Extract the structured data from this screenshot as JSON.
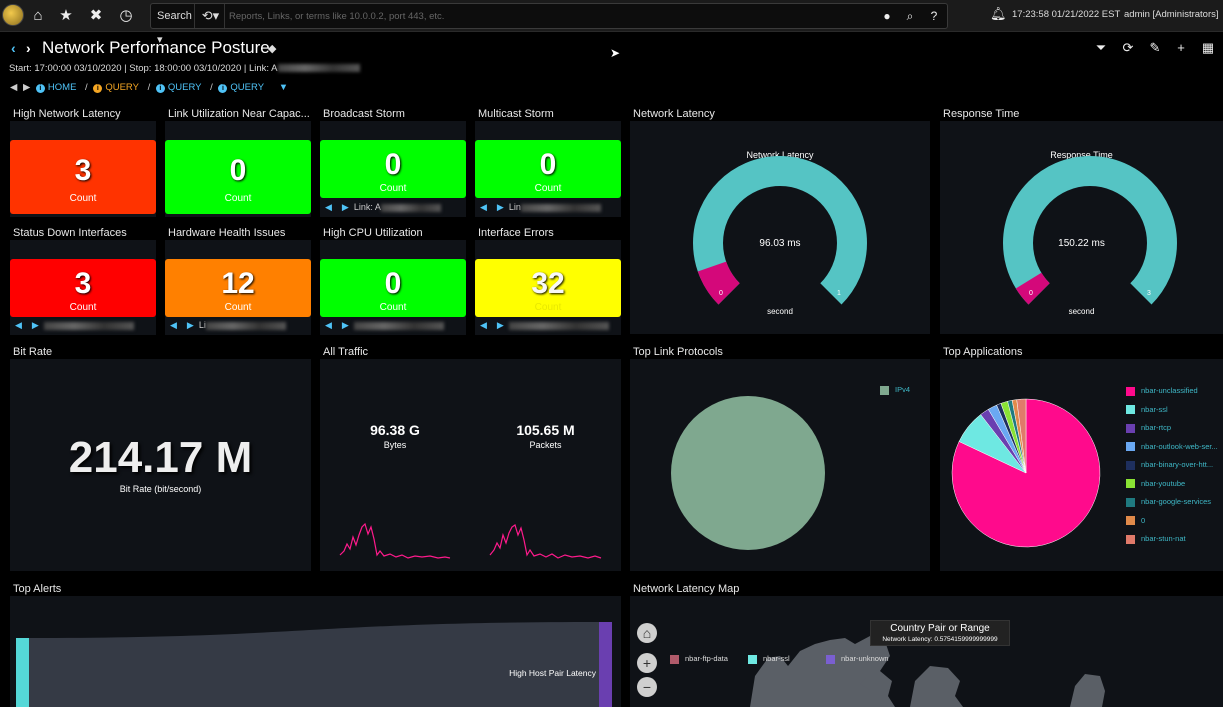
{
  "topbar": {
    "search_label": "Search ▾",
    "history_label": "⟲▾",
    "search_placeholder": "Reports, Links, or terms like 10.0.0.2, port 443, etc.",
    "clock": "17:23:58 01/21/2022 EST",
    "user": "admin [Administrators]"
  },
  "header": {
    "title": "Network Performance Posture",
    "subtitle_prefix": "Start: 17:00:00 03/10/2020 | Stop: 18:00:00 03/10/2020 | Link: A",
    "breadcrumbs": [
      "HOME",
      "QUERY",
      "QUERY",
      "QUERY"
    ]
  },
  "tiles": [
    {
      "title": "High Network Latency",
      "value": "3",
      "label": "Count",
      "color": "#ff3300"
    },
    {
      "title": "Link Utilization Near Capac...",
      "value": "0",
      "label": "Count",
      "color": "#00ff00"
    },
    {
      "title": "Broadcast Storm",
      "value": "0",
      "label": "Count",
      "color": "#00ff00",
      "pager": "Link: A"
    },
    {
      "title": "Multicast Storm",
      "value": "0",
      "label": "Count",
      "color": "#00ff00",
      "pager": "Lin"
    },
    {
      "title": "Status Down Interfaces",
      "value": "3",
      "label": "Count",
      "color": "#ff0000",
      "pager": ""
    },
    {
      "title": "Hardware Health Issues",
      "value": "12",
      "label": "Count",
      "color": "#ff8000",
      "pager": "Li"
    },
    {
      "title": "High CPU Utilization",
      "value": "0",
      "label": "Count",
      "color": "#00ff00",
      "pager": ""
    },
    {
      "title": "Interface Errors",
      "value": "32",
      "label": "Count",
      "color": "#ffff00",
      "pager": ""
    }
  ],
  "gauges": [
    {
      "panel": "Network Latency",
      "title": "Network Latency",
      "value": "96.03 ms",
      "min": "0",
      "max": "1",
      "unit": "second",
      "fraction": 0.096
    },
    {
      "panel": "Response Time",
      "title": "Response Time",
      "value": "150.22 ms",
      "min": "0",
      "max": "3",
      "unit": "second",
      "fraction": 0.05
    }
  ],
  "bitrate": {
    "panel": "Bit Rate",
    "value": "214.17 M",
    "label": "Bit Rate (bit/second)"
  },
  "traffic": {
    "panel": "All Traffic",
    "bytes_value": "96.38 G",
    "bytes_label": "Bytes",
    "packets_value": "105.65 M",
    "packets_label": "Packets"
  },
  "protocols": {
    "panel": "Top Link Protocols",
    "legend": [
      {
        "label": "IPv4",
        "color": "#7fa88f"
      }
    ]
  },
  "applications": {
    "panel": "Top Applications",
    "legend": [
      {
        "label": "nbar-unclassified",
        "color": "#ff0a8c"
      },
      {
        "label": "nbar-ssl",
        "color": "#6ee8e2"
      },
      {
        "label": "nbar-rtcp",
        "color": "#6a3fb0"
      },
      {
        "label": "nbar-outlook-web-ser...",
        "color": "#6aa8f2"
      },
      {
        "label": "nbar-binary-over-htt...",
        "color": "#1e2f5e"
      },
      {
        "label": "nbar-youtube",
        "color": "#8ae234"
      },
      {
        "label": "nbar-google-services",
        "color": "#1f7a80"
      },
      {
        "label": "0",
        "color": "#e08a4a"
      },
      {
        "label": "nbar-stun-nat",
        "color": "#e07a6a"
      }
    ]
  },
  "alerts": {
    "panel": "Top Alerts",
    "item": "High Host Pair Latency"
  },
  "map": {
    "panel": "Network Latency Map",
    "tooltip_title": "Country Pair or Range",
    "tooltip_text": "Network Latency: 0.5754159999999999",
    "legend": [
      {
        "label": "nbar-ftp-data",
        "color": "#b05a6a"
      },
      {
        "label": "nbar-ssl",
        "color": "#6ee8e2"
      },
      {
        "label": "nbar-unknown",
        "color": "#7a5fd0"
      }
    ]
  }
}
